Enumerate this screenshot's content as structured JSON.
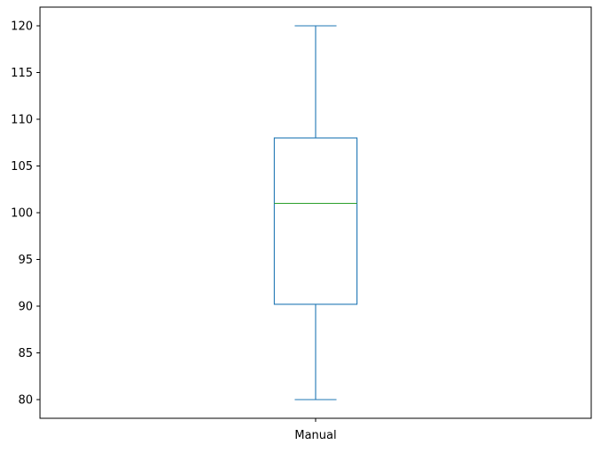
{
  "chart_data": {
    "type": "box",
    "title": "",
    "xlabel": "",
    "ylabel": "",
    "categories": [
      "Manual"
    ],
    "series": [
      {
        "category": "Manual",
        "min": 80,
        "q1": 90.2,
        "median": 101,
        "q3": 108,
        "max": 120
      }
    ],
    "ylim": [
      78,
      122
    ],
    "yticks": [
      80,
      85,
      90,
      95,
      100,
      105,
      110,
      115,
      120
    ],
    "grid": false,
    "colors": {
      "box": "#1f77b4",
      "whisker": "#1f77b4",
      "cap": "#1f77b4",
      "median": "#2ca02c",
      "axis": "#000000"
    }
  }
}
